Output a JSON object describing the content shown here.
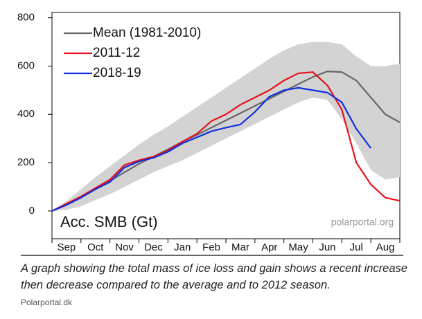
{
  "chart_data": {
    "type": "line",
    "annotation": "Acc. SMB (Gt)",
    "watermark": "polarportal.org",
    "categories": [
      null,
      "Sep",
      null,
      "Oct",
      null,
      "Nov",
      null,
      "Dec",
      null,
      "Jan",
      null,
      "Feb",
      null,
      "Mar",
      null,
      "Apr",
      null,
      "May",
      null,
      "Jun",
      null,
      "Jul",
      null,
      "Aug",
      null
    ],
    "band": {
      "color": "#d3d3d3",
      "upper": [
        0,
        40,
        90,
        140,
        185,
        230,
        275,
        315,
        350,
        390,
        430,
        470,
        510,
        550,
        590,
        630,
        665,
        690,
        700,
        700,
        690,
        640,
        600,
        600,
        610
      ],
      "lower": [
        0,
        5,
        20,
        45,
        70,
        100,
        130,
        160,
        185,
        210,
        240,
        270,
        300,
        330,
        360,
        390,
        420,
        450,
        470,
        460,
        380,
        280,
        170,
        130,
        140
      ]
    },
    "series": [
      {
        "name": "Mean (1981-2010)",
        "color": "#666666",
        "values": [
          0,
          25,
          55,
          90,
          125,
          160,
          195,
          225,
          255,
          287,
          315,
          345,
          375,
          405,
          435,
          465,
          495,
          525,
          555,
          578,
          575,
          540,
          470,
          400,
          367
        ]
      },
      {
        "name": "2011-12",
        "color": "#e8101a",
        "values": [
          0,
          30,
          60,
          95,
          130,
          190,
          210,
          225,
          250,
          287,
          320,
          372,
          400,
          440,
          470,
          500,
          540,
          570,
          575,
          520,
          420,
          200,
          110,
          55,
          42
        ]
      },
      {
        "name": "2018-19",
        "color": "#1030e0",
        "values": [
          0,
          25,
          55,
          90,
          120,
          180,
          205,
          220,
          245,
          280,
          305,
          330,
          345,
          358,
          410,
          473,
          500,
          510,
          500,
          490,
          450,
          340,
          260,
          null,
          null
        ]
      }
    ],
    "ylim": [
      -115,
      822
    ],
    "yticks": [
      0,
      200,
      400,
      600,
      800
    ],
    "legend": "top-left",
    "grid": false
  },
  "caption": "A graph showing the total mass of ice loss and gain shows a recent increase then decrease compared to the average and to 2012 season.",
  "source": "Polarportal.dk"
}
